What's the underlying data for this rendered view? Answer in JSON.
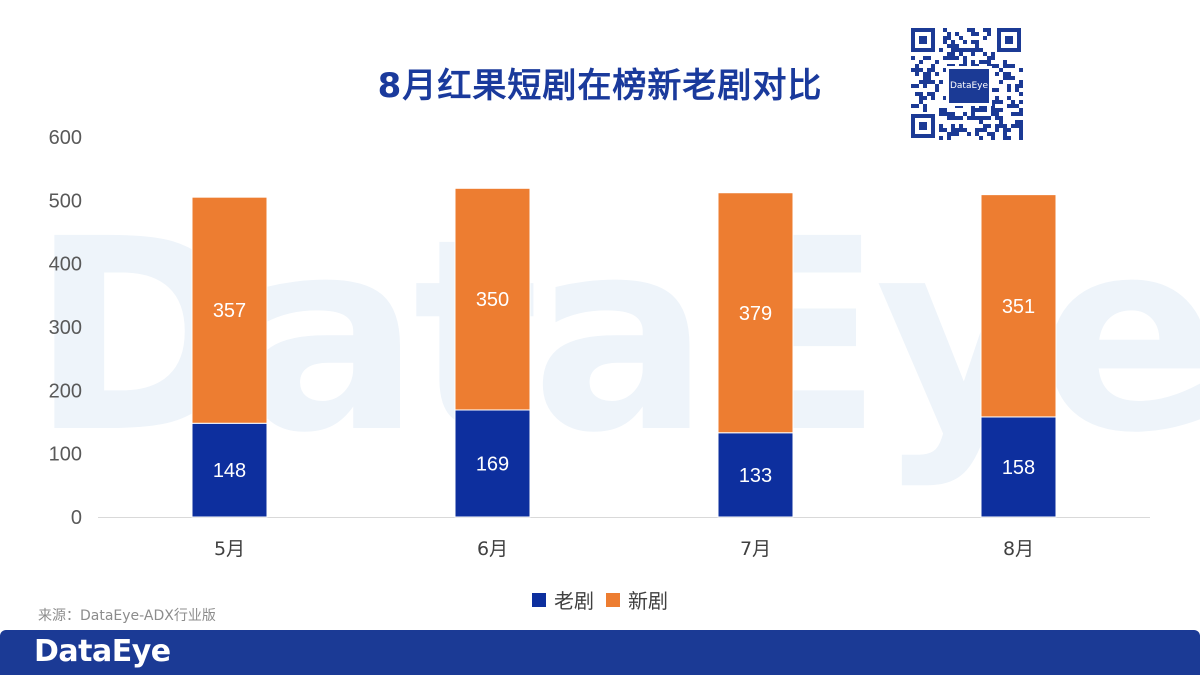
{
  "watermark": "DataEye",
  "title": "8月红果短剧在榜新老剧对比",
  "colors": {
    "old": "#0d2f9e",
    "new": "#ed7d31",
    "title": "#1a3a9c",
    "footer": "#1b3a95"
  },
  "chart_data": {
    "type": "bar",
    "stacked": true,
    "title": "8月红果短剧在榜新老剧对比",
    "categories": [
      "5月",
      "6月",
      "7月",
      "8月"
    ],
    "series": [
      {
        "name": "老剧",
        "values": [
          148,
          169,
          133,
          158
        ]
      },
      {
        "name": "新剧",
        "values": [
          357,
          350,
          379,
          351
        ]
      }
    ],
    "ylim": [
      0,
      600
    ],
    "yticks": [
      0,
      100,
      200,
      300,
      400,
      500,
      600
    ],
    "xlabel": "",
    "ylabel": "",
    "grid": false,
    "legend": "bottom"
  },
  "legend": {
    "old": "老剧",
    "new": "新剧"
  },
  "source": "来源：DataEye-ADX行业版",
  "qr": {
    "label": "DataEye"
  },
  "footer": {
    "logo": "DataEye"
  }
}
